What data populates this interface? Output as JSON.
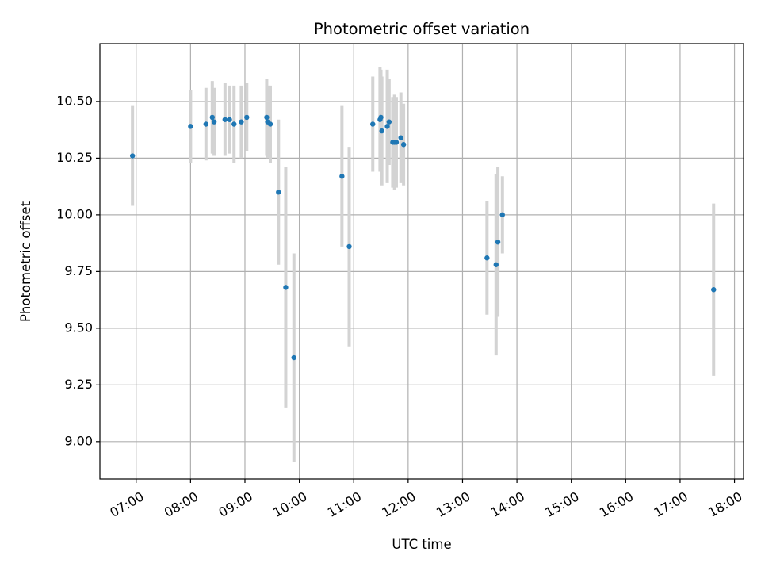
{
  "chart_data": {
    "type": "scatter",
    "title": "Photometric offset variation",
    "xlabel": "UTC time",
    "ylabel": "Photometric offset",
    "x_type": "time",
    "xlim": [
      "06:20",
      "18:10"
    ],
    "ylim": [
      8.835,
      10.755
    ],
    "grid": true,
    "x_ticks": [
      "07:00",
      "08:00",
      "09:00",
      "10:00",
      "11:00",
      "12:00",
      "13:00",
      "14:00",
      "15:00",
      "16:00",
      "17:00",
      "18:00"
    ],
    "y_ticks": [
      "9.00",
      "9.25",
      "9.50",
      "9.75",
      "10.00",
      "10.25",
      "10.50"
    ],
    "marker_color": "#1f77b4",
    "errorbar_color": "#d3d3d3",
    "series": [
      {
        "points": [
          {
            "x": "06:56",
            "y": 10.26,
            "err": 0.22
          },
          {
            "x": "08:00",
            "y": 10.39,
            "err": 0.16
          },
          {
            "x": "08:17",
            "y": 10.4,
            "err": 0.16
          },
          {
            "x": "08:24",
            "y": 10.43,
            "err": 0.16
          },
          {
            "x": "08:26",
            "y": 10.41,
            "err": 0.15
          },
          {
            "x": "08:38",
            "y": 10.42,
            "err": 0.16
          },
          {
            "x": "08:43",
            "y": 10.42,
            "err": 0.15
          },
          {
            "x": "08:48",
            "y": 10.4,
            "err": 0.17
          },
          {
            "x": "08:56",
            "y": 10.41,
            "err": 0.16
          },
          {
            "x": "09:02",
            "y": 10.43,
            "err": 0.15
          },
          {
            "x": "09:24",
            "y": 10.43,
            "err": 0.17
          },
          {
            "x": "09:25",
            "y": 10.41,
            "err": 0.16
          },
          {
            "x": "09:28",
            "y": 10.4,
            "err": 0.17
          },
          {
            "x": "09:37",
            "y": 10.1,
            "err": 0.32
          },
          {
            "x": "09:45",
            "y": 9.68,
            "err": 0.53
          },
          {
            "x": "09:54",
            "y": 9.37,
            "err": 0.46
          },
          {
            "x": "10:47",
            "y": 10.17,
            "err": 0.31
          },
          {
            "x": "10:55",
            "y": 9.86,
            "err": 0.44
          },
          {
            "x": "11:21",
            "y": 10.4,
            "err": 0.21
          },
          {
            "x": "11:29",
            "y": 10.42,
            "err": 0.23
          },
          {
            "x": "11:30",
            "y": 10.43,
            "err": 0.21
          },
          {
            "x": "11:31",
            "y": 10.37,
            "err": 0.24
          },
          {
            "x": "11:37",
            "y": 10.39,
            "err": 0.25
          },
          {
            "x": "11:39",
            "y": 10.41,
            "err": 0.19
          },
          {
            "x": "11:43",
            "y": 10.32,
            "err": 0.2
          },
          {
            "x": "11:45",
            "y": 10.32,
            "err": 0.21
          },
          {
            "x": "11:47",
            "y": 10.32,
            "err": 0.2
          },
          {
            "x": "11:52",
            "y": 10.34,
            "err": 0.2
          },
          {
            "x": "11:55",
            "y": 10.31,
            "err": 0.18
          },
          {
            "x": "13:27",
            "y": 9.81,
            "err": 0.25
          },
          {
            "x": "13:37",
            "y": 9.78,
            "err": 0.4
          },
          {
            "x": "13:39",
            "y": 9.88,
            "err": 0.33
          },
          {
            "x": "13:44",
            "y": 10.0,
            "err": 0.17
          },
          {
            "x": "17:37",
            "y": 9.67,
            "err": 0.38
          }
        ]
      }
    ]
  }
}
